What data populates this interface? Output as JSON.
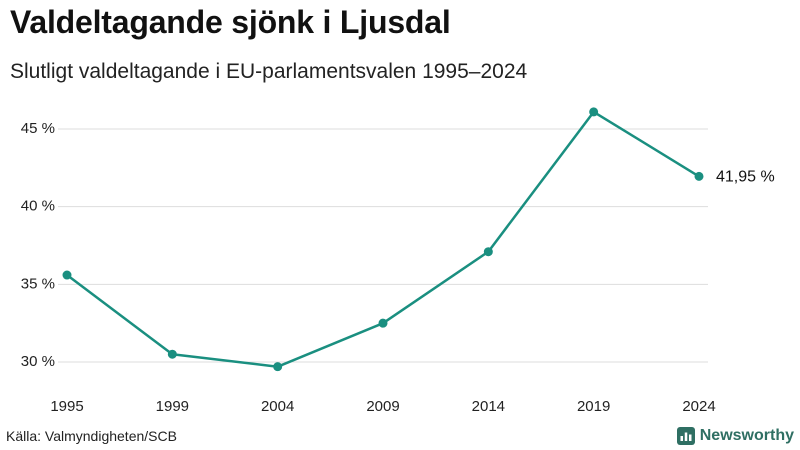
{
  "header": {
    "title": "Valdeltagande sjönk i Ljusdal",
    "subtitle": "Slutligt valdeltagande i EU-parlamentsvalen 1995–2024"
  },
  "footer": {
    "source": "Källa: Valmyndigheten/SCB",
    "brand": "Newsworthy"
  },
  "colors": {
    "line": "#1a8f80",
    "grid": "#dddddd",
    "brand": "#2f6f63"
  },
  "chart_data": {
    "type": "line",
    "title": "Valdeltagande sjönk i Ljusdal",
    "subtitle": "Slutligt valdeltagande i EU-parlamentsvalen 1995–2024",
    "xlabel": "",
    "ylabel": "",
    "categories": [
      "1995",
      "1999",
      "2004",
      "2009",
      "2014",
      "2019",
      "2024"
    ],
    "series": [
      {
        "name": "Valdeltagande",
        "values": [
          35.6,
          30.5,
          29.7,
          32.5,
          37.1,
          46.1,
          41.95
        ]
      }
    ],
    "yticks": [
      30,
      35,
      40,
      45
    ],
    "ytick_labels": [
      "30 %",
      "35 %",
      "40 %",
      "45 %"
    ],
    "ylim": [
      28.5,
      46.8
    ],
    "grid": true,
    "end_label": "41,95 %"
  }
}
